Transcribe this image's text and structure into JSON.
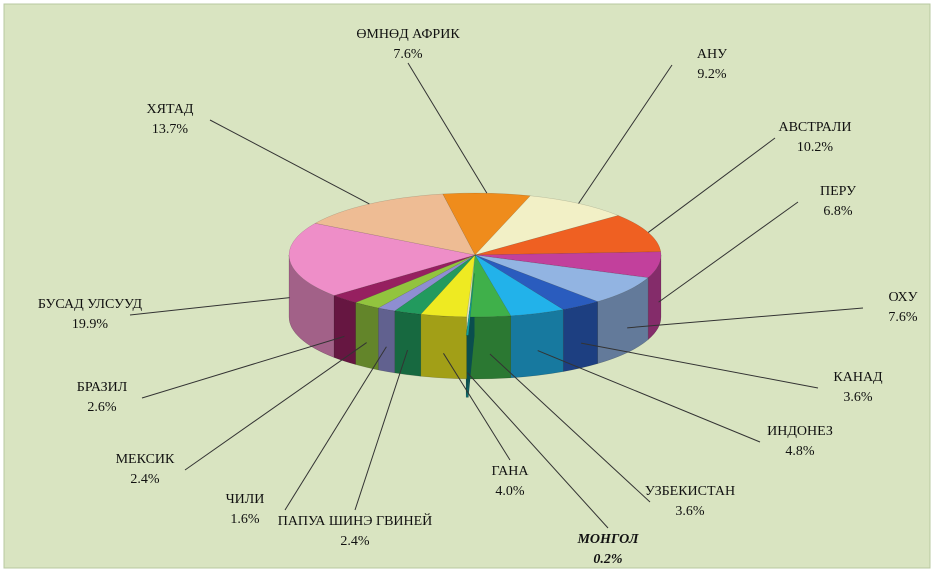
{
  "chart_data": {
    "type": "pie3d",
    "categories": [
      "ӨМНӨД АФРИК",
      "АНУ",
      "АВСТРАЛИ",
      "ПЕРУ",
      "ОХУ",
      "КАНАД",
      "ИНДОНЕЗ",
      "УЗБЕКИСТАН",
      "МОНГОЛ",
      "ГАНА",
      "ПАПУА ШИНЭ ГВИНЕЙ",
      "ЧИЛИ",
      "МЕКСИК",
      "БРАЗИЛ",
      "БУСАД УЛСУУД",
      "ХЯТАД"
    ],
    "values": [
      7.6,
      9.2,
      10.2,
      6.8,
      7.6,
      3.6,
      4.8,
      3.6,
      0.2,
      4.0,
      2.4,
      1.6,
      2.4,
      2.6,
      19.9,
      13.7
    ],
    "value_labels": [
      "7.6%",
      "9.2%",
      "10.2%",
      "6.8%",
      "7.6%",
      "3.6%",
      "4.8%",
      "3.6%",
      "0.2%",
      "4.0%",
      "2.4%",
      "1.6%",
      "2.4%",
      "2.6%",
      "19.9%",
      "13.7%"
    ],
    "colors": [
      "#ef8c1c",
      "#f2f0c6",
      "#ef6022",
      "#c2409c",
      "#92b4e2",
      "#2a5cbe",
      "#22b2ea",
      "#3fb04a",
      "#139c9c",
      "#eeea22",
      "#229a5e",
      "#8e8ed2",
      "#92c43e",
      "#962060",
      "#ee8ec8",
      "#eebc94"
    ]
  }
}
